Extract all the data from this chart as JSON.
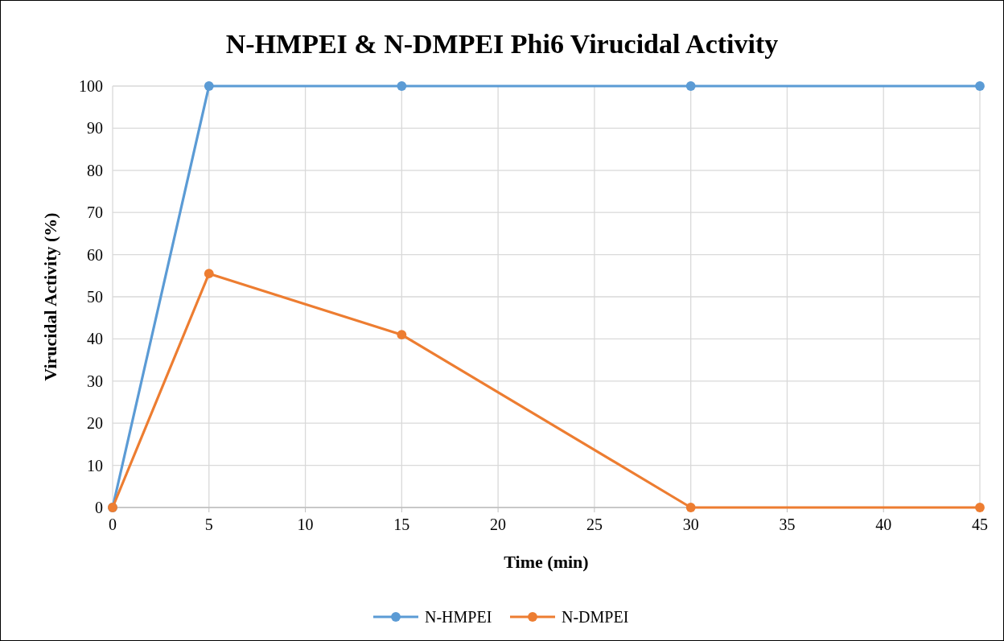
{
  "chart_data": {
    "type": "line",
    "title": "N-HMPEI & N-DMPEI Phi6 Virucidal Activity",
    "xlabel": "Time (min)",
    "ylabel": "Virucidal Activity (%)",
    "x": [
      0,
      5,
      15,
      30,
      45
    ],
    "series": [
      {
        "name": "N-HMPEI",
        "color": "#5b9bd5",
        "values": [
          0,
          100,
          100,
          100,
          100
        ]
      },
      {
        "name": "N-DMPEI",
        "color": "#ed7d31",
        "values": [
          0,
          55.5,
          41,
          0,
          0
        ]
      }
    ],
    "xlim": [
      0,
      45
    ],
    "xticks": [
      0,
      5,
      10,
      15,
      20,
      25,
      30,
      35,
      40,
      45
    ],
    "ylim": [
      0,
      100
    ],
    "yticks": [
      0,
      10,
      20,
      30,
      40,
      50,
      60,
      70,
      80,
      90,
      100
    ],
    "grid": true,
    "legend": "bottom",
    "marker": "circle",
    "line_style": "solid"
  }
}
